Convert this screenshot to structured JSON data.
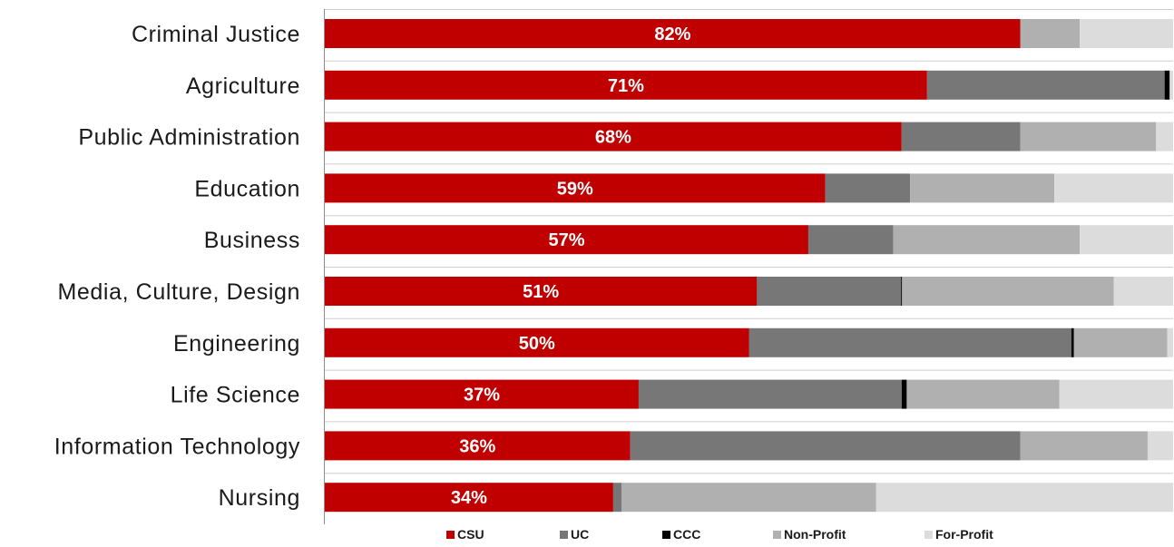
{
  "chart_data": {
    "type": "bar",
    "orientation": "horizontal",
    "stacked": true,
    "normalized": true,
    "categories": [
      "Criminal Justice",
      "Agriculture",
      "Public Administration",
      "Education",
      "Business",
      "Media, Culture, Design",
      "Engineering",
      "Life Science",
      "Information Technology",
      "Nursing"
    ],
    "series": [
      {
        "name": "CSU",
        "color": "#c00000",
        "values": [
          82,
          71,
          68,
          59,
          57,
          51,
          50,
          37,
          36,
          34
        ]
      },
      {
        "name": "UC",
        "color": "#777777",
        "values": [
          0,
          28,
          14,
          10,
          10,
          17,
          38,
          31,
          46,
          1
        ]
      },
      {
        "name": "CCC",
        "color": "#000000",
        "values": [
          0,
          0.6,
          0,
          0,
          0,
          0.1,
          0.3,
          0.6,
          0,
          0
        ]
      },
      {
        "name": "Non-Profit",
        "color": "#b0b0b0",
        "values": [
          7,
          0,
          16,
          17,
          22,
          25,
          11,
          18,
          15,
          30
        ]
      },
      {
        "name": "For-Profit",
        "color": "#dcdcdc",
        "values": [
          11,
          0.4,
          2,
          14,
          11,
          7,
          0.7,
          13.4,
          3,
          35
        ]
      }
    ],
    "data_labels": [
      "82%",
      "71%",
      "68%",
      "59%",
      "57%",
      "51%",
      "50%",
      "37%",
      "36%",
      "34%"
    ],
    "xlim": [
      0,
      100
    ],
    "legend": "bottom",
    "grid": false
  }
}
